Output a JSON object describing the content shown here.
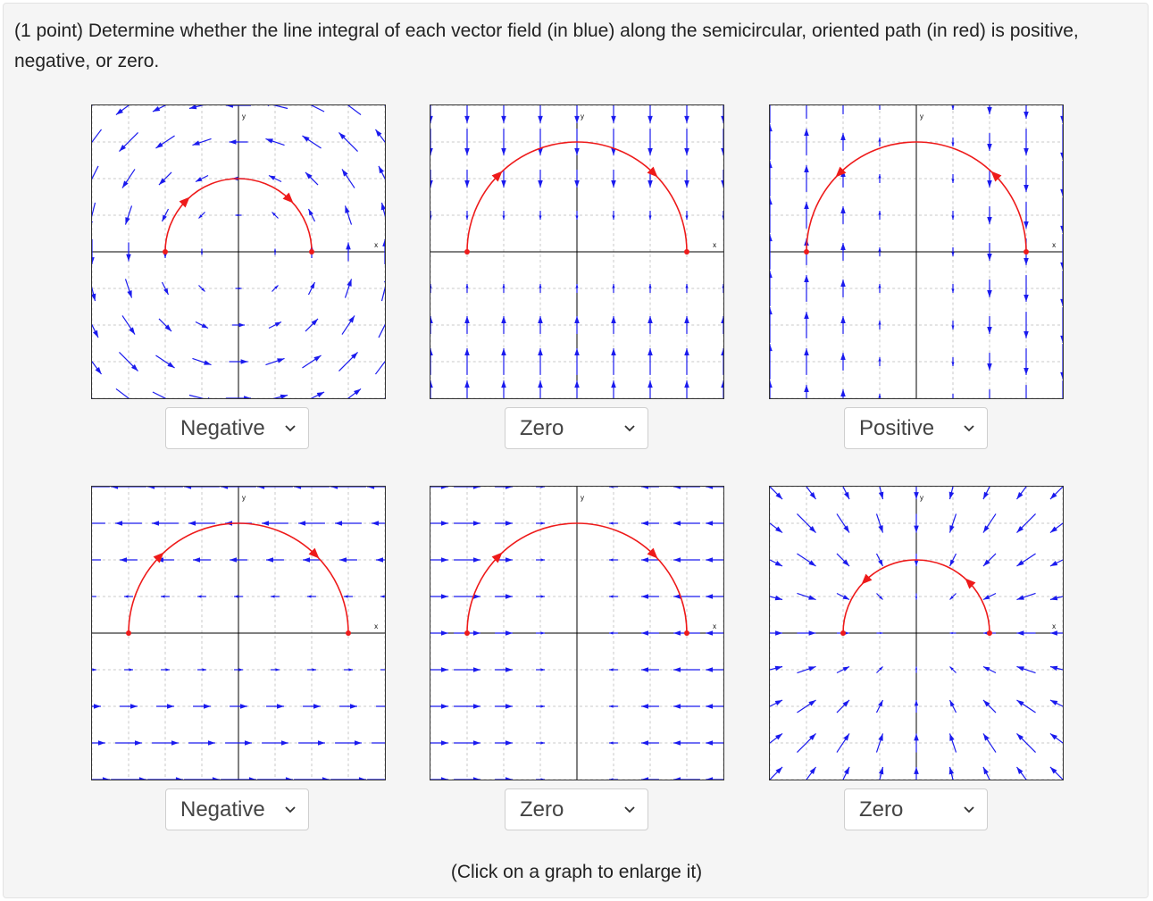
{
  "question": "(1 point) Determine whether the line integral of each vector field (in blue) along the semicircular, oriented path (in red) is positive, negative, or zero.",
  "axis_labels": {
    "x": "x",
    "y": "y"
  },
  "colors": {
    "field": "#1a1aee",
    "path": "#ee1a1a",
    "grid": "#c8c8c8",
    "axis": "#000000"
  },
  "graphs": [
    {
      "field": "rotation-ccw",
      "path_radius": 2,
      "path_direction": "clockwise",
      "answer": "Negative"
    },
    {
      "field": "vertical-toward-x-axis",
      "path_radius": 3,
      "path_direction": "clockwise",
      "answer": "Zero"
    },
    {
      "field": "vertical-away-from-center",
      "path_radius": 3,
      "path_direction": "counterclockwise",
      "answer": "Positive"
    },
    {
      "field": "horizontal-leftward-above-rightward-below",
      "path_radius": 3,
      "path_direction": "clockwise",
      "answer": "Negative"
    },
    {
      "field": "horizontal-toward-y-axis",
      "path_radius": 3,
      "path_direction": "clockwise",
      "answer": "Zero"
    },
    {
      "field": "radial-inward",
      "path_radius": 2,
      "path_direction": "counterclockwise",
      "answer": "Zero"
    }
  ],
  "select_options": [
    "Positive",
    "Negative",
    "Zero"
  ],
  "hint": "(Click on a graph to enlarge it)"
}
